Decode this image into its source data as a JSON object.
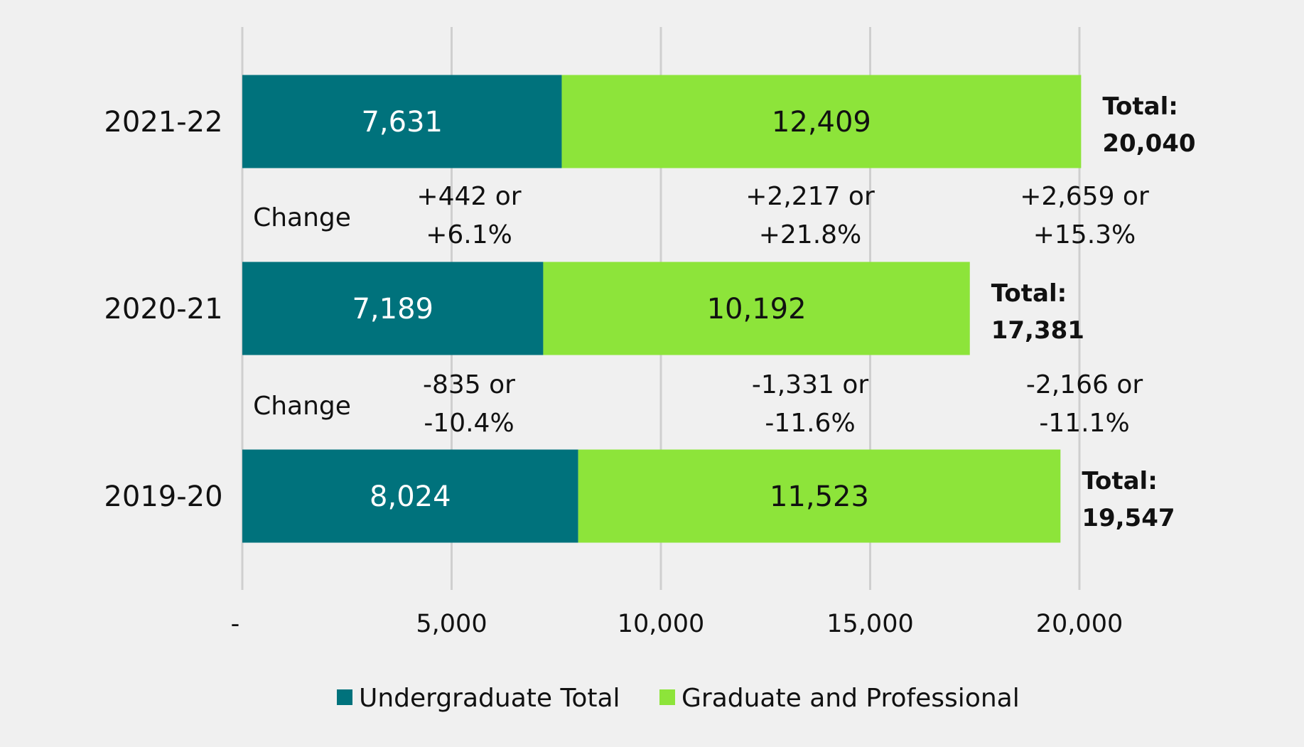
{
  "chart_data": {
    "type": "bar",
    "orientation": "horizontal",
    "stacked": true,
    "categories": [
      "2021-22",
      "2020-21",
      "2019-20"
    ],
    "series": [
      {
        "name": "Undergraduate Total",
        "color": "#00727c",
        "values": [
          7631,
          7189,
          8024
        ],
        "labels": [
          "7,631",
          "7,189",
          "8,024"
        ]
      },
      {
        "name": "Graduate and Professional",
        "color": "#8de43a",
        "values": [
          12409,
          10192,
          11523
        ],
        "labels": [
          "12,409",
          "10,192",
          "11,523"
        ]
      }
    ],
    "totals": [
      {
        "label": "Total:",
        "value": "20,040"
      },
      {
        "label": "Total:",
        "value": "17,381"
      },
      {
        "label": "Total:",
        "value": "19,547"
      }
    ],
    "changes": [
      {
        "label": "Change",
        "undergraduate": [
          "+442 or",
          "+6.1%"
        ],
        "graduate": [
          "+2,217 or",
          "+21.8%"
        ],
        "total": [
          "+2,659 or",
          "+15.3%"
        ]
      },
      {
        "label": "Change",
        "undergraduate": [
          "-835 or",
          "-10.4%"
        ],
        "graduate": [
          "-1,331 or",
          "-11.6%"
        ],
        "total": [
          "-2,166 or",
          "-11.1%"
        ]
      }
    ],
    "x_ticks": [
      {
        "value": 0,
        "label": "-"
      },
      {
        "value": 5000,
        "label": "5,000"
      },
      {
        "value": 10000,
        "label": "10,000"
      },
      {
        "value": 15000,
        "label": "15,000"
      },
      {
        "value": 20000,
        "label": "20,000"
      }
    ],
    "xlim": [
      0,
      20000
    ],
    "grid": true,
    "legend": "bottom",
    "title": "",
    "xlabel": "",
    "ylabel": ""
  }
}
